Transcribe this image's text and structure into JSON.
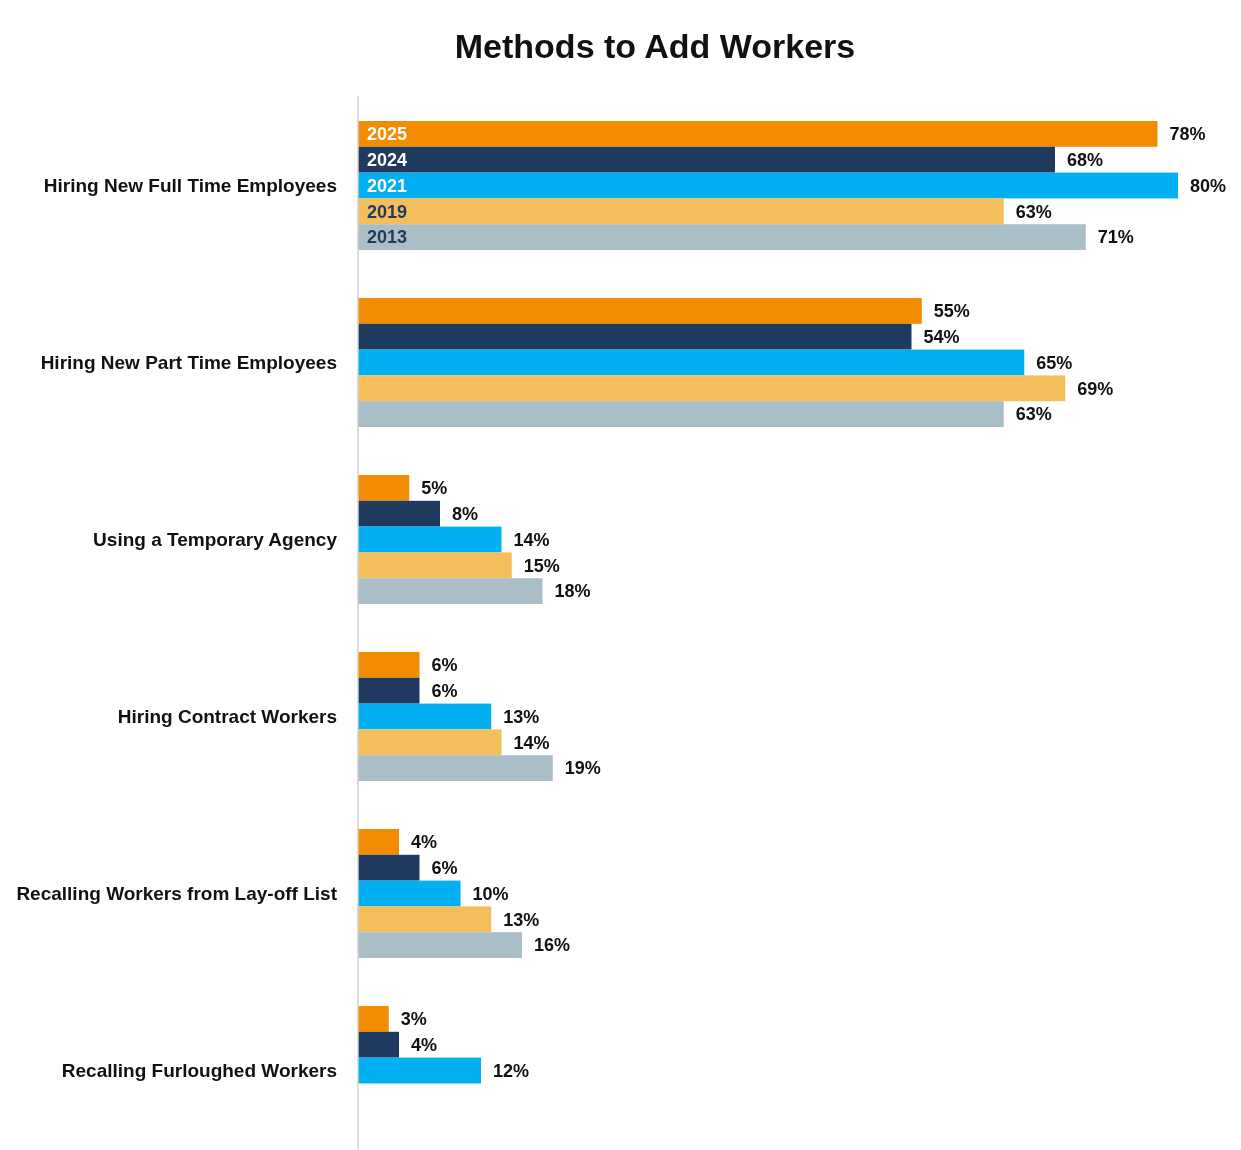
{
  "chart_data": {
    "type": "bar",
    "orientation": "horizontal",
    "title": "Methods to Add Workers",
    "categories": [
      "Hiring New Full Time Employees",
      "Hiring New Part Time Employees",
      "Using a Temporary Agency",
      "Hiring Contract Workers",
      "Recalling Workers from Lay-off List",
      "Recalling Furloughed Workers"
    ],
    "series": [
      {
        "name": "2025",
        "color": "#f28c00",
        "values": [
          78,
          55,
          5,
          6,
          4,
          3
        ],
        "value_labels": [
          "78%",
          "55%",
          "5%",
          "6%",
          "4%",
          "3%"
        ]
      },
      {
        "name": "2024",
        "color": "#1f3a5f",
        "values": [
          68,
          54,
          8,
          6,
          6,
          4
        ],
        "value_labels": [
          "68%",
          "54%",
          "8%",
          "6%",
          "6%",
          "4%"
        ]
      },
      {
        "name": "2021",
        "color": "#00b0f0",
        "values": [
          80,
          65,
          14,
          13,
          10,
          12
        ],
        "value_labels": [
          "80%",
          "65%",
          "14%",
          "13%",
          "10%",
          "12%"
        ]
      },
      {
        "name": "2019",
        "color": "#f5be5c",
        "values": [
          63,
          69,
          15,
          14,
          13,
          null
        ],
        "value_labels": [
          "63%",
          "69%",
          "15%",
          "14%",
          "13%",
          null
        ]
      },
      {
        "name": "2013",
        "color": "#a9bec6",
        "values": [
          71,
          63,
          18,
          19,
          16,
          null
        ],
        "value_labels": [
          "71%",
          "63%",
          "18%",
          "19%",
          "16%",
          null
        ]
      }
    ]
  }
}
